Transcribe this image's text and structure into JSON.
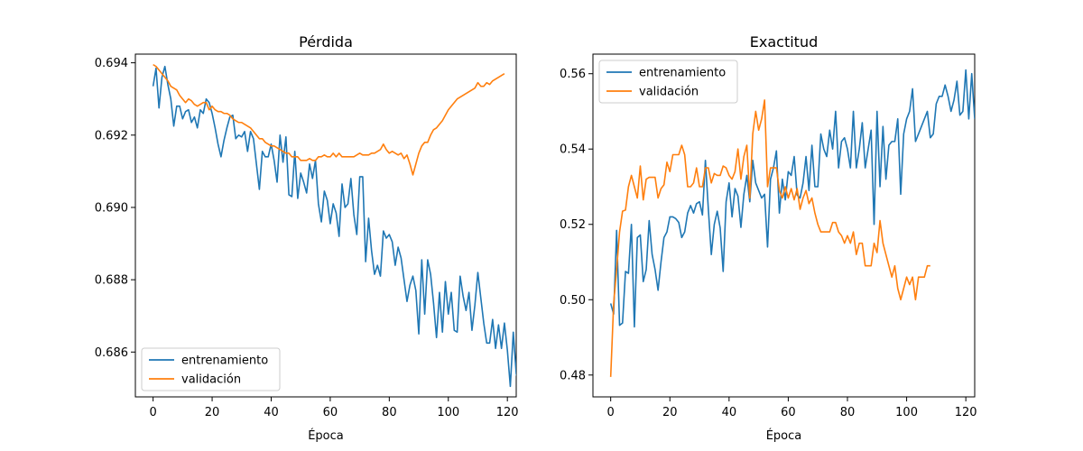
{
  "chart_data": [
    {
      "type": "line",
      "title": "Pérdida",
      "xlabel": "Época",
      "ylabel": "",
      "xlim": [
        -6,
        123
      ],
      "ylim": [
        0.68476,
        0.69424
      ],
      "xticks": [
        0,
        20,
        40,
        60,
        80,
        100,
        120
      ],
      "yticks": [
        0.686,
        0.688,
        0.69,
        0.692,
        0.694
      ],
      "ytick_labels": [
        "0.686",
        "0.688",
        "0.690",
        "0.692",
        "0.694"
      ],
      "legend_loc": "lower-left",
      "series": [
        {
          "name": "entrenamiento",
          "color": "#1f77b4",
          "values": [
            0.69335,
            0.69385,
            0.69275,
            0.6936,
            0.6939,
            0.6934,
            0.693,
            0.69225,
            0.6928,
            0.6928,
            0.69245,
            0.69265,
            0.6927,
            0.69235,
            0.6925,
            0.6922,
            0.6927,
            0.6926,
            0.693,
            0.6929,
            0.6926,
            0.6922,
            0.69175,
            0.6914,
            0.69185,
            0.6922,
            0.6925,
            0.69255,
            0.6919,
            0.692,
            0.69195,
            0.6921,
            0.69155,
            0.6921,
            0.6919,
            0.6912,
            0.6905,
            0.69155,
            0.6914,
            0.6914,
            0.69175,
            0.6913,
            0.6907,
            0.692,
            0.69125,
            0.69195,
            0.69035,
            0.6903,
            0.69155,
            0.69025,
            0.69095,
            0.6907,
            0.6904,
            0.6912,
            0.6908,
            0.6913,
            0.6901,
            0.6896,
            0.69045,
            0.6902,
            0.68955,
            0.6901,
            0.68985,
            0.6892,
            0.69065,
            0.69,
            0.6901,
            0.6908,
            0.6898,
            0.68925,
            0.69085,
            0.69085,
            0.6885,
            0.6897,
            0.6888,
            0.68815,
            0.6884,
            0.6881,
            0.68935,
            0.68915,
            0.68925,
            0.68905,
            0.6884,
            0.6889,
            0.6886,
            0.688,
            0.6874,
            0.68785,
            0.6881,
            0.6877,
            0.6865,
            0.68855,
            0.68705,
            0.68855,
            0.68815,
            0.68735,
            0.6864,
            0.68765,
            0.68655,
            0.68795,
            0.68705,
            0.68765,
            0.6866,
            0.68655,
            0.6881,
            0.68755,
            0.68715,
            0.68765,
            0.6866,
            0.6873,
            0.6882,
            0.6875,
            0.6868,
            0.68625,
            0.68625,
            0.6869,
            0.6861,
            0.68675,
            0.6861,
            0.6868,
            0.68605,
            0.68505,
            0.68655,
            0.6854,
            0.6851
          ]
        },
        {
          "name": "validación",
          "color": "#ff7f0e",
          "values": [
            0.69395,
            0.6939,
            0.6938,
            0.6937,
            0.6936,
            0.6935,
            0.69335,
            0.6933,
            0.69325,
            0.6931,
            0.693,
            0.6929,
            0.693,
            0.69295,
            0.69285,
            0.6928,
            0.69285,
            0.6929,
            0.6929,
            0.6927,
            0.6928,
            0.6927,
            0.69265,
            0.69265,
            0.6926,
            0.6926,
            0.69255,
            0.69245,
            0.6924,
            0.69235,
            0.69235,
            0.6923,
            0.69225,
            0.6922,
            0.6921,
            0.692,
            0.6919,
            0.6919,
            0.6918,
            0.69175,
            0.6917,
            0.6917,
            0.69165,
            0.6916,
            0.69155,
            0.6915,
            0.6915,
            0.6914,
            0.6914,
            0.6914,
            0.6913,
            0.6913,
            0.6913,
            0.69135,
            0.6913,
            0.6913,
            0.6914,
            0.6914,
            0.69145,
            0.6914,
            0.6914,
            0.6915,
            0.6914,
            0.6915,
            0.6914,
            0.6914,
            0.6914,
            0.6914,
            0.6914,
            0.69145,
            0.6915,
            0.69145,
            0.69145,
            0.69145,
            0.6915,
            0.6915,
            0.69155,
            0.6916,
            0.69175,
            0.6916,
            0.6915,
            0.69155,
            0.6915,
            0.69145,
            0.6915,
            0.69135,
            0.69145,
            0.6912,
            0.6909,
            0.6912,
            0.6915,
            0.6917,
            0.6918,
            0.6918,
            0.692,
            0.69215,
            0.6922,
            0.6923,
            0.6924,
            0.69255,
            0.6927,
            0.6928,
            0.6929,
            0.693,
            0.69305,
            0.6931,
            0.69315,
            0.6932,
            0.69325,
            0.6933,
            0.69345,
            0.69335,
            0.69335,
            0.69345,
            0.6934,
            0.6935,
            0.69355,
            0.6936,
            0.69365,
            0.6937
          ]
        }
      ]
    },
    {
      "type": "line",
      "title": "Exactitud",
      "xlabel": "Época",
      "ylabel": "",
      "xlim": [
        -6,
        123
      ],
      "ylim": [
        0.4742,
        0.5652
      ],
      "xticks": [
        0,
        20,
        40,
        60,
        80,
        100,
        120
      ],
      "yticks": [
        0.48,
        0.5,
        0.52,
        0.54,
        0.56
      ],
      "ytick_labels": [
        "0.48",
        "0.50",
        "0.52",
        "0.54",
        "0.56"
      ],
      "legend_loc": "upper-left",
      "series": [
        {
          "name": "entrenamiento",
          "color": "#1f77b4",
          "values": [
            0.499,
            0.4962,
            0.5184,
            0.4932,
            0.4938,
            0.5075,
            0.507,
            0.52,
            0.4928,
            0.5165,
            0.5172,
            0.5048,
            0.508,
            0.521,
            0.512,
            0.508,
            0.5025,
            0.51,
            0.5165,
            0.518,
            0.522,
            0.522,
            0.5215,
            0.5205,
            0.5165,
            0.518,
            0.523,
            0.525,
            0.523,
            0.5255,
            0.526,
            0.5225,
            0.537,
            0.524,
            0.512,
            0.52,
            0.5235,
            0.519,
            0.5075,
            0.526,
            0.531,
            0.522,
            0.5295,
            0.5275,
            0.5192,
            0.528,
            0.533,
            0.526,
            0.537,
            0.531,
            0.529,
            0.527,
            0.528,
            0.514,
            0.532,
            0.535,
            0.5395,
            0.523,
            0.532,
            0.5265,
            0.534,
            0.533,
            0.538,
            0.5278,
            0.527,
            0.531,
            0.538,
            0.529,
            0.541,
            0.53,
            0.53,
            0.544,
            0.54,
            0.538,
            0.545,
            0.54,
            0.55,
            0.535,
            0.542,
            0.543,
            0.54,
            0.535,
            0.55,
            0.535,
            0.54,
            0.547,
            0.535,
            0.54,
            0.545,
            0.52,
            0.55,
            0.53,
            0.546,
            0.532,
            0.541,
            0.542,
            0.542,
            0.548,
            0.528,
            0.544,
            0.548,
            0.55,
            0.556,
            0.542,
            0.544,
            0.546,
            0.548,
            0.55,
            0.543,
            0.544,
            0.552,
            0.554,
            0.554,
            0.557,
            0.554,
            0.55,
            0.553,
            0.558,
            0.549,
            0.55,
            0.561,
            0.548,
            0.56,
            0.548
          ]
        },
        {
          "name": "validación",
          "color": "#ff7f0e",
          "values": [
            0.4795,
            0.499,
            0.508,
            0.518,
            0.5235,
            0.5238,
            0.53,
            0.533,
            0.53,
            0.527,
            0.5355,
            0.5265,
            0.532,
            0.5325,
            0.5325,
            0.5325,
            0.527,
            0.5295,
            0.5305,
            0.5365,
            0.534,
            0.5385,
            0.5385,
            0.5385,
            0.541,
            0.5385,
            0.53,
            0.53,
            0.531,
            0.535,
            0.53,
            0.53,
            0.535,
            0.535,
            0.531,
            0.5335,
            0.533,
            0.533,
            0.5355,
            0.535,
            0.533,
            0.532,
            0.534,
            0.54,
            0.532,
            0.538,
            0.541,
            0.527,
            0.544,
            0.55,
            0.545,
            0.548,
            0.553,
            0.53,
            0.535,
            0.535,
            0.535,
            0.529,
            0.527,
            0.53,
            0.527,
            0.5295,
            0.5265,
            0.5295,
            0.524,
            0.527,
            0.529,
            0.5255,
            0.527,
            0.523,
            0.52,
            0.518,
            0.518,
            0.518,
            0.518,
            0.5205,
            0.5205,
            0.518,
            0.517,
            0.515,
            0.517,
            0.515,
            0.518,
            0.512,
            0.515,
            0.515,
            0.509,
            0.509,
            0.509,
            0.515,
            0.5125,
            0.521,
            0.515,
            0.512,
            0.509,
            0.506,
            0.509,
            0.503,
            0.5,
            0.503,
            0.506,
            0.504,
            0.506,
            0.5,
            0.506,
            0.506,
            0.506,
            0.509,
            0.509
          ]
        }
      ]
    }
  ]
}
